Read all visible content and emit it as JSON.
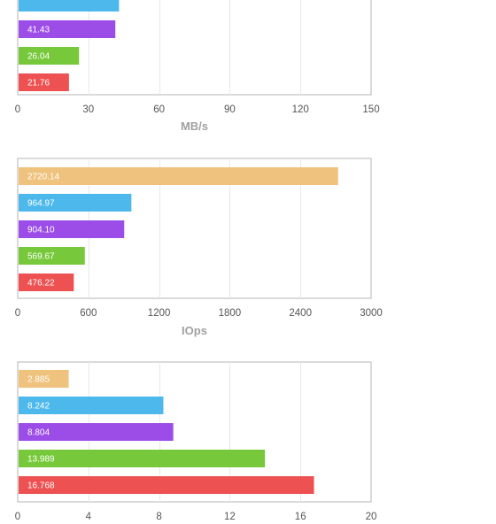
{
  "colors": {
    "series": [
      "#efc27e",
      "#4cb8ec",
      "#9c4de8",
      "#77c93b",
      "#ee5151"
    ],
    "grid": "#e8e8e8",
    "frame": "#b4b4b4"
  },
  "chart_data": [
    {
      "type": "bar",
      "orientation": "horizontal",
      "xlabel": "MB/s",
      "xlim": [
        0,
        150
      ],
      "ticks": [
        "0",
        "30",
        "60",
        "90",
        "120",
        "150"
      ],
      "grid": true,
      "bars": [
        {
          "value": 43.0,
          "label": ""
        },
        {
          "value": 41.43,
          "label": "41.43"
        },
        {
          "value": 26.04,
          "label": "26.04"
        },
        {
          "value": 21.76,
          "label": "21.76"
        }
      ],
      "color_offset": 1,
      "visible_slots": 4
    },
    {
      "type": "bar",
      "orientation": "horizontal",
      "xlabel": "IOps",
      "xlim": [
        0,
        3000
      ],
      "ticks": [
        "0",
        "600",
        "1200",
        "1800",
        "2400",
        "3000"
      ],
      "grid": true,
      "bars": [
        {
          "value": 2720.14,
          "label": "2720.14"
        },
        {
          "value": 964.97,
          "label": "964.97"
        },
        {
          "value": 904.1,
          "label": "904.10"
        },
        {
          "value": 569.67,
          "label": "569.67"
        },
        {
          "value": 476.22,
          "label": "476.22"
        }
      ],
      "color_offset": 0,
      "visible_slots": 5
    },
    {
      "type": "bar",
      "orientation": "horizontal",
      "xlabel": "",
      "xlim": [
        0,
        20
      ],
      "ticks": [
        "0",
        "4",
        "8",
        "12",
        "16",
        "20"
      ],
      "grid": true,
      "bars": [
        {
          "value": 2.885,
          "label": "2.885"
        },
        {
          "value": 8.242,
          "label": "8.242"
        },
        {
          "value": 8.804,
          "label": "8.804"
        },
        {
          "value": 13.989,
          "label": "13.989"
        },
        {
          "value": 16.768,
          "label": "16.768"
        }
      ],
      "color_offset": 0,
      "visible_slots": 5
    }
  ]
}
